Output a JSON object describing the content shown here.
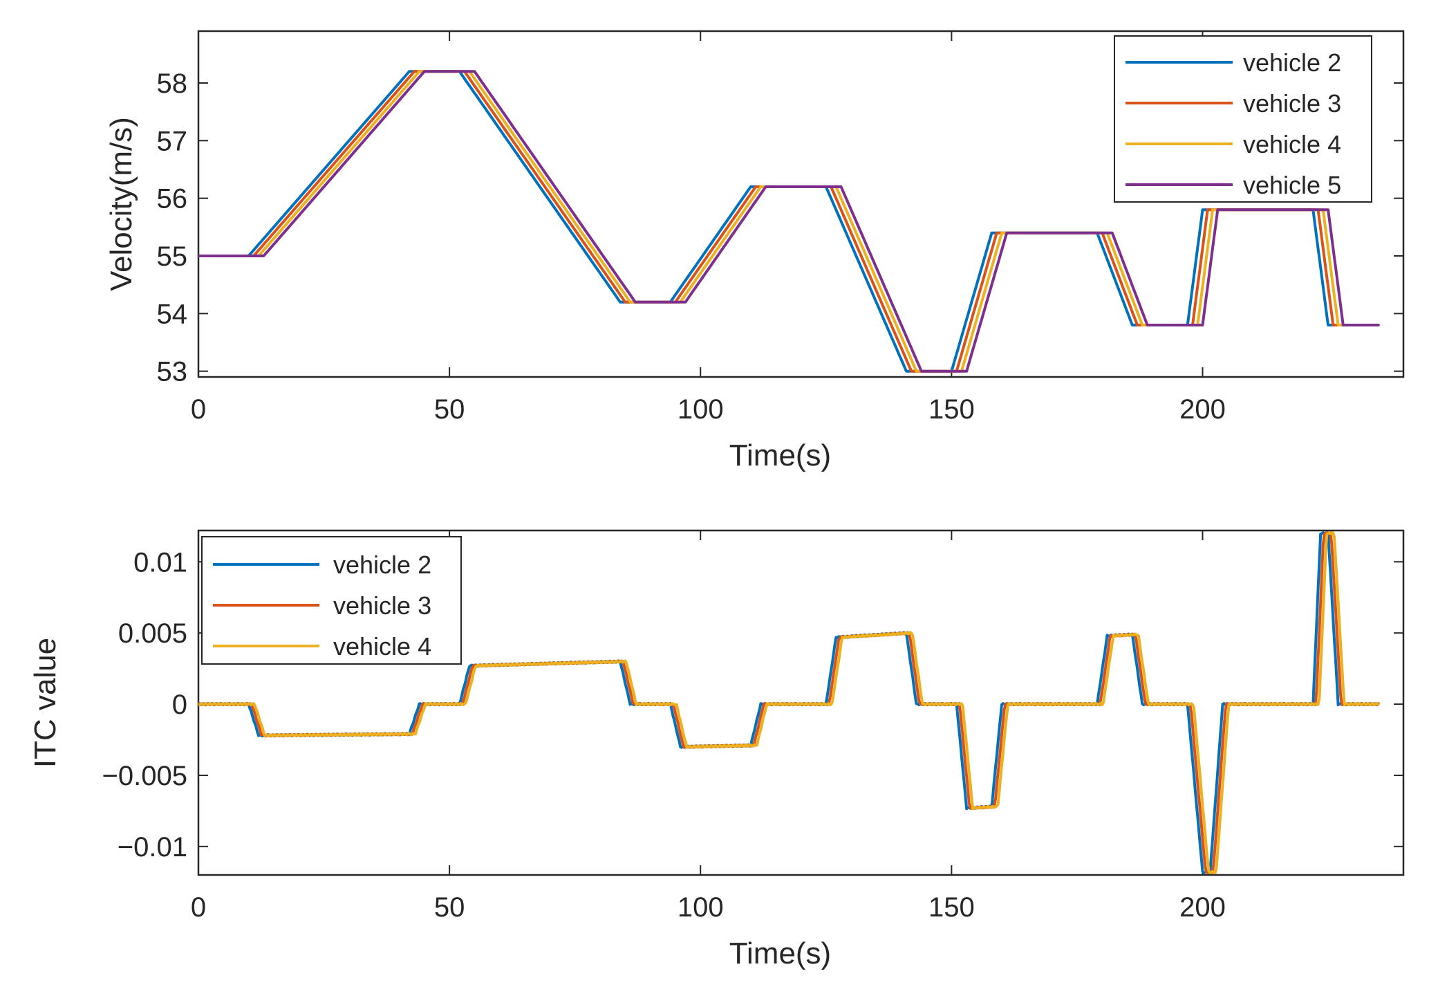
{
  "chart_data": [
    {
      "type": "line",
      "title": "",
      "xlabel": "Time(s)",
      "ylabel": "Velocity(m/s)",
      "xlim": [
        0,
        240
      ],
      "ylim": [
        52.9,
        58.9
      ],
      "xticks": [
        0,
        50,
        100,
        150,
        200
      ],
      "xtick_labels": [
        "0",
        "50",
        "100",
        "150",
        "200"
      ],
      "yticks": [
        53,
        54,
        55,
        56,
        57,
        58
      ],
      "ytick_labels": [
        "53",
        "54",
        "55",
        "56",
        "57",
        "58"
      ],
      "legend_position": "top-right",
      "series": [
        {
          "name": "vehicle 2",
          "color": "#0072BD",
          "lag": 0
        },
        {
          "name": "vehicle 3",
          "color": "#D95319",
          "lag": 1
        },
        {
          "name": "vehicle 4",
          "color": "#EDB120",
          "lag": 2
        },
        {
          "name": "vehicle 5",
          "color": "#7E2F8E",
          "lag": 3
        }
      ],
      "base_profile": [
        [
          0,
          55.0
        ],
        [
          10,
          55.0
        ],
        [
          42,
          58.2
        ],
        [
          52,
          58.2
        ],
        [
          84,
          54.2
        ],
        [
          94,
          54.2
        ],
        [
          110,
          56.2
        ],
        [
          125,
          56.2
        ],
        [
          141,
          53.0
        ],
        [
          150,
          53.0
        ],
        [
          158,
          55.4
        ],
        [
          179,
          55.4
        ],
        [
          186,
          53.8
        ],
        [
          197,
          53.8
        ],
        [
          200,
          55.8
        ],
        [
          222,
          55.8
        ],
        [
          225,
          53.8
        ],
        [
          235,
          53.8
        ]
      ]
    },
    {
      "type": "line",
      "title": "",
      "xlabel": "Time(s)",
      "ylabel": "ITC value",
      "xlim": [
        0,
        240
      ],
      "ylim": [
        -0.012,
        0.0122
      ],
      "xticks": [
        0,
        50,
        100,
        150,
        200
      ],
      "xtick_labels": [
        "0",
        "50",
        "100",
        "150",
        "200"
      ],
      "yticks": [
        -0.01,
        -0.005,
        0,
        0.005,
        0.01
      ],
      "ytick_labels": [
        "−0.01",
        "−0.005",
        "0",
        "0.005",
        "0.01"
      ],
      "legend_position": "top-left",
      "series": [
        {
          "name": "vehicle 2",
          "color": "#0072BD",
          "lag": 0
        },
        {
          "name": "vehicle 3",
          "color": "#D95319",
          "lag": 0.6
        },
        {
          "name": "vehicle 4",
          "color": "#EDB120",
          "lag": 1.2
        }
      ],
      "base_profile": [
        [
          0,
          0
        ],
        [
          10,
          0
        ],
        [
          12,
          -0.0022
        ],
        [
          42,
          -0.0021
        ],
        [
          44,
          0
        ],
        [
          52,
          0
        ],
        [
          54,
          0.0027
        ],
        [
          84,
          0.003
        ],
        [
          86,
          0
        ],
        [
          94,
          0
        ],
        [
          96,
          -0.003
        ],
        [
          110,
          -0.0029
        ],
        [
          112,
          0
        ],
        [
          125,
          0
        ],
        [
          127,
          0.0047
        ],
        [
          141,
          0.005
        ],
        [
          143,
          0
        ],
        [
          151,
          0
        ],
        [
          153,
          -0.0073
        ],
        [
          158,
          -0.0072
        ],
        [
          160,
          0
        ],
        [
          179,
          0
        ],
        [
          181,
          0.0048
        ],
        [
          186,
          0.0049
        ],
        [
          188,
          0
        ],
        [
          197,
          0
        ],
        [
          200,
          -0.0118
        ],
        [
          201.5,
          -0.0118
        ],
        [
          204,
          0
        ],
        [
          222,
          0
        ],
        [
          223.5,
          0.012
        ],
        [
          225,
          0.012
        ],
        [
          227,
          0
        ],
        [
          235,
          0
        ]
      ]
    }
  ]
}
